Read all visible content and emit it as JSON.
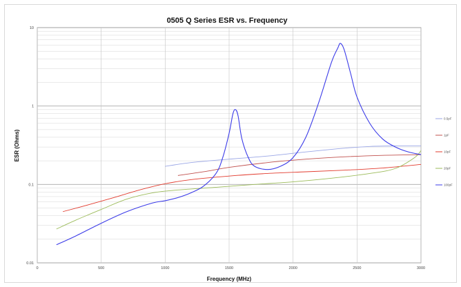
{
  "chart_data": {
    "type": "line",
    "title": "0505 Q Series ESR vs. Frequency",
    "xlabel": "Frequency (MHz)",
    "ylabel": "ESR (Ohms)",
    "xlim": [
      0,
      3000
    ],
    "ylim": [
      0.01,
      10
    ],
    "yscale": "log",
    "x_ticks": [
      "0",
      "500",
      "1000",
      "1500",
      "2000",
      "2500",
      "3000"
    ],
    "y_ticks": [
      "0.01",
      "0.1",
      "1",
      "10"
    ],
    "grid": true,
    "legend_position": "right",
    "series": [
      {
        "name": "0.5pF",
        "color": "#9aa6e6",
        "x": [
          1000,
          1200,
          1500,
          1800,
          2100,
          2400,
          2600,
          2800,
          3000
        ],
        "y": [
          0.17,
          0.19,
          0.21,
          0.23,
          0.26,
          0.29,
          0.305,
          0.31,
          0.31
        ]
      },
      {
        "name": "1pF",
        "color": "#c0504d",
        "x": [
          1100,
          1300,
          1500,
          1800,
          2100,
          2400,
          2700,
          3000
        ],
        "y": [
          0.13,
          0.145,
          0.165,
          0.19,
          0.21,
          0.225,
          0.235,
          0.24
        ]
      },
      {
        "name": "10pF",
        "color": "#e23b2e",
        "x": [
          200,
          400,
          600,
          800,
          1000,
          1200,
          1500,
          1800,
          2100,
          2400,
          2700,
          3000
        ],
        "y": [
          0.045,
          0.055,
          0.068,
          0.085,
          0.102,
          0.115,
          0.128,
          0.138,
          0.145,
          0.152,
          0.162,
          0.18
        ]
      },
      {
        "name": "20pF",
        "color": "#9bbb59",
        "x": [
          150,
          300,
          500,
          700,
          900,
          1100,
          1400,
          1700,
          2000,
          2300,
          2600,
          2800,
          2950,
          3000
        ],
        "y": [
          0.027,
          0.035,
          0.048,
          0.065,
          0.078,
          0.085,
          0.092,
          0.1,
          0.108,
          0.12,
          0.138,
          0.16,
          0.22,
          0.27
        ]
      },
      {
        "name": "100pF",
        "color": "#3b3be8",
        "x": [
          150,
          300,
          500,
          700,
          900,
          1000,
          1100,
          1200,
          1300,
          1400,
          1450,
          1500,
          1530,
          1550,
          1570,
          1600,
          1650,
          1700,
          1800,
          1900,
          2000,
          2100,
          2200,
          2300,
          2350,
          2370,
          2400,
          2450,
          2500,
          2600,
          2700,
          2800,
          2900,
          3000
        ],
        "y": [
          0.017,
          0.022,
          0.032,
          0.045,
          0.058,
          0.062,
          0.068,
          0.078,
          0.095,
          0.14,
          0.22,
          0.45,
          0.8,
          0.9,
          0.75,
          0.38,
          0.22,
          0.17,
          0.155,
          0.17,
          0.22,
          0.4,
          1.1,
          3.6,
          5.5,
          6.3,
          5.2,
          2.6,
          1.3,
          0.6,
          0.38,
          0.3,
          0.26,
          0.24
        ]
      }
    ]
  }
}
